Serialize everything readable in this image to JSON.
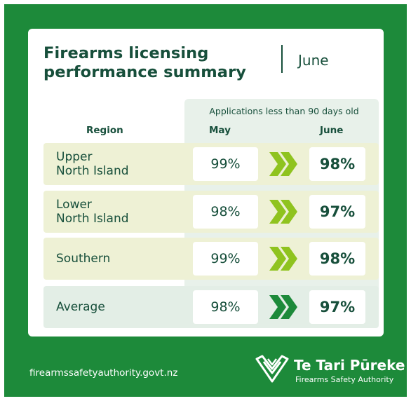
{
  "title_line1": "Firearms licensing",
  "title_line2": "performance summary",
  "month": "June",
  "table": {
    "group_header": "Applications less than 90 days old",
    "col_region": "Region",
    "col_may": "May",
    "col_june": "June",
    "rows": [
      {
        "label_line1": "Upper",
        "label_line2": "North Island",
        "may": "99%",
        "june": "98%"
      },
      {
        "label_line1": "Lower",
        "label_line2": "North Island",
        "may": "98%",
        "june": "97%"
      },
      {
        "label_line1": "Southern",
        "label_line2": "",
        "may": "99%",
        "june": "98%"
      },
      {
        "label_line1": "Average",
        "label_line2": "",
        "may": "98%",
        "june": "97%"
      }
    ]
  },
  "footer": {
    "url": "firearmssafetyauthority.govt.nz",
    "org_name": "Te Tari Pūreke",
    "org_sub": "Firearms Safety Authority"
  },
  "colors": {
    "brand_green": "#1d8a3a",
    "dark_text": "#174f3b",
    "chevron_light": "#8fc31f",
    "chevron_dark": "#1d8a3a"
  },
  "icons": {
    "arrow": "double-chevron-right-icon",
    "logo": "fsa-logo-icon"
  }
}
